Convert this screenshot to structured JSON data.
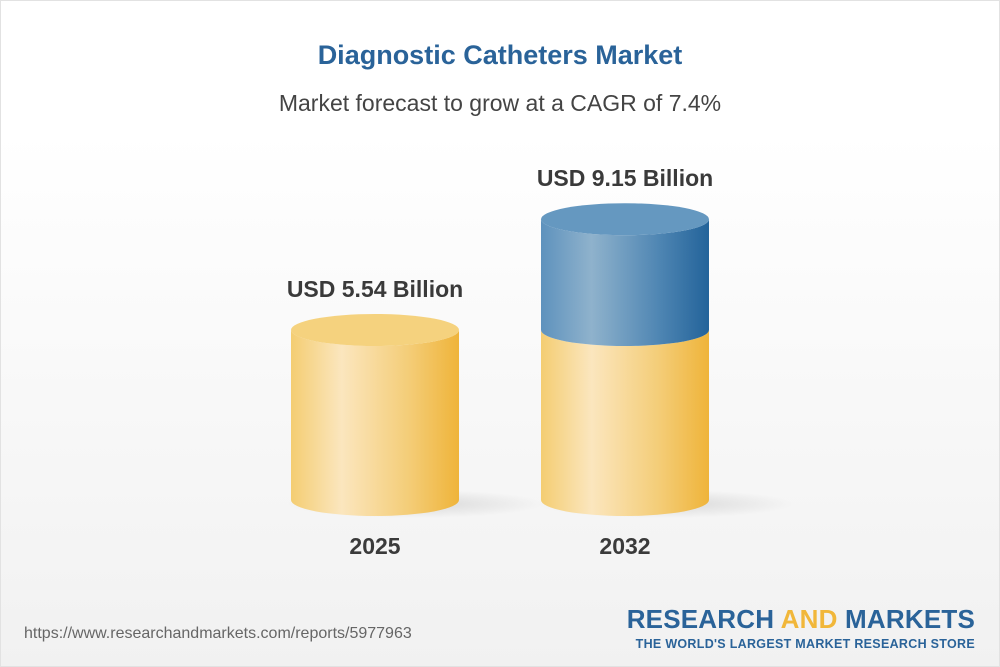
{
  "title": "Diagnostic Catheters Market",
  "subtitle": "Market forecast to grow at a CAGR of 7.4%",
  "chart_data": {
    "type": "bar",
    "style": "3d-cylinder",
    "categories": [
      "2025",
      "2032"
    ],
    "values": [
      5.54,
      9.15
    ],
    "data_labels": [
      "USD 5.54 Billion",
      "USD 9.15 Billion"
    ],
    "unit": "USD Billion",
    "cagr": "7.4%",
    "colors": {
      "base": "#f2c35a",
      "growth": "#3d79aa"
    }
  },
  "footer": {
    "url": "https://www.researchandmarkets.com/reports/5977963",
    "logo_line1_a": "RESEARCH ",
    "logo_line1_b": "AND",
    "logo_line1_c": " MARKETS",
    "logo_line2": "THE WORLD'S LARGEST MARKET RESEARCH STORE"
  }
}
